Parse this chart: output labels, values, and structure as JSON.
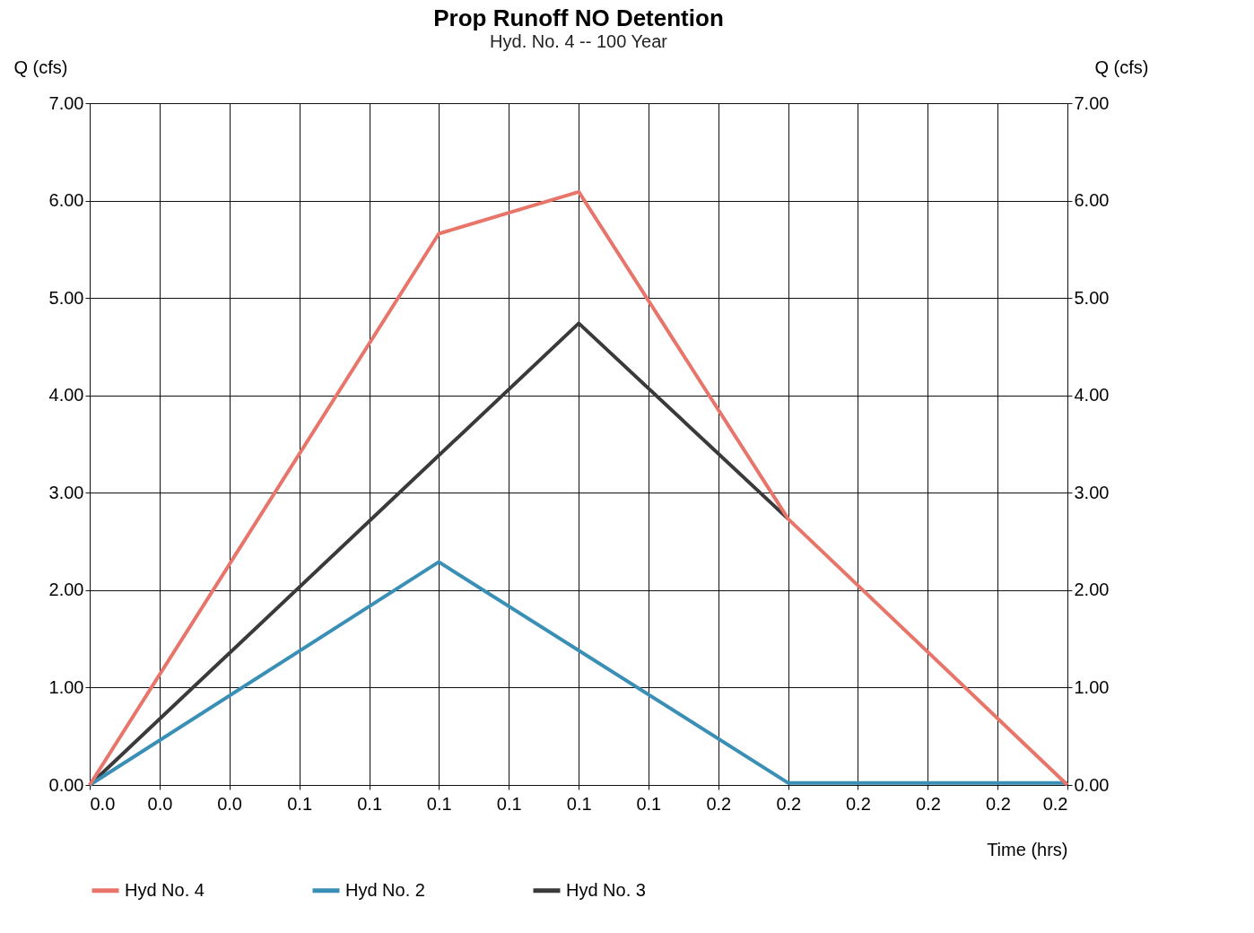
{
  "chart_data": {
    "type": "line",
    "title": "Prop Runoff NO Detention",
    "subtitle": "Hyd. No. 4 -- 100 Year",
    "xlabel": "Time (hrs)",
    "ylabel": "Q (cfs)",
    "y2label": "Q (cfs)",
    "series": [
      {
        "name": "Hyd No. 4",
        "color": "#e8756a",
        "x": [
          0,
          0.0833,
          0.1167,
          0.1667,
          0.2333
        ],
        "values": [
          0,
          5.66,
          6.09,
          2.73,
          0
        ]
      },
      {
        "name": "Hyd No. 2",
        "color": "#3a8fb7",
        "x": [
          0,
          0.0833,
          0.1667,
          0.2333
        ],
        "values": [
          0,
          2.29,
          0.02,
          0.02
        ]
      },
      {
        "name": "Hyd No. 3",
        "color": "#3a3a3a",
        "x": [
          0,
          0.1167,
          0.1667
        ],
        "values": [
          0,
          4.74,
          2.73
        ]
      }
    ],
    "xlim": [
      0,
      0.2333
    ],
    "xticks": [
      {
        "value": 0,
        "label": "0.0"
      },
      {
        "value": 0.0167,
        "label": "0.0"
      },
      {
        "value": 0.0333,
        "label": "0.0"
      },
      {
        "value": 0.05,
        "label": "0.1"
      },
      {
        "value": 0.0667,
        "label": "0.1"
      },
      {
        "value": 0.0833,
        "label": "0.1"
      },
      {
        "value": 0.1,
        "label": "0.1"
      },
      {
        "value": 0.1167,
        "label": "0.1"
      },
      {
        "value": 0.1333,
        "label": "0.1"
      },
      {
        "value": 0.15,
        "label": "0.2"
      },
      {
        "value": 0.1667,
        "label": "0.2"
      },
      {
        "value": 0.1833,
        "label": "0.2"
      },
      {
        "value": 0.2,
        "label": "0.2"
      },
      {
        "value": 0.2167,
        "label": "0.2"
      },
      {
        "value": 0.2333,
        "label": "0.2"
      }
    ],
    "ylim": [
      0,
      7
    ],
    "yticks": [
      {
        "value": 0,
        "label": "0.00"
      },
      {
        "value": 1,
        "label": "1.00"
      },
      {
        "value": 2,
        "label": "2.00"
      },
      {
        "value": 3,
        "label": "3.00"
      },
      {
        "value": 4,
        "label": "4.00"
      },
      {
        "value": 5,
        "label": "5.00"
      },
      {
        "value": 6,
        "label": "6.00"
      },
      {
        "value": 7,
        "label": "7.00"
      }
    ],
    "y2lim": [
      0,
      7
    ],
    "y2ticks": [
      {
        "value": 0,
        "label": "0.00"
      },
      {
        "value": 1,
        "label": "1.00"
      },
      {
        "value": 2,
        "label": "2.00"
      },
      {
        "value": 3,
        "label": "3.00"
      },
      {
        "value": 4,
        "label": "4.00"
      },
      {
        "value": 5,
        "label": "5.00"
      },
      {
        "value": 6,
        "label": "6.00"
      },
      {
        "value": 7,
        "label": "7.00"
      }
    ],
    "grid": true,
    "legend": "bottom",
    "marker": "none",
    "line_style": "solid"
  }
}
